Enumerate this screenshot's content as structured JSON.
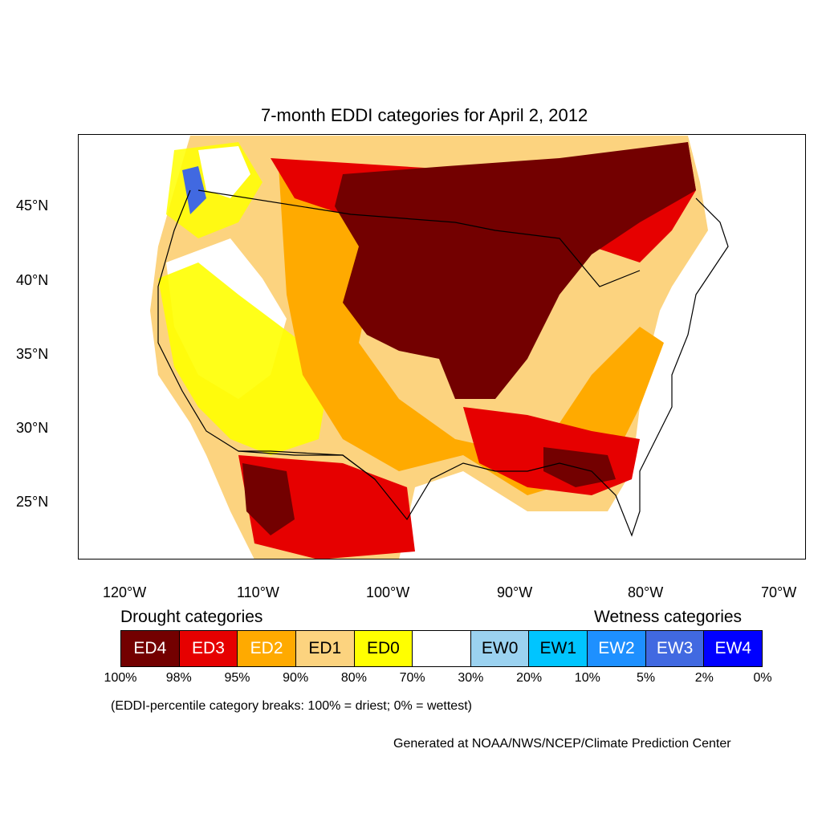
{
  "title": "7-month EDDI categories for April 2, 2012",
  "colors": {
    "ED4": "#730000",
    "ED3": "#e60000",
    "ED2": "#ffaa00",
    "ED1": "#fcd37f",
    "ED0": "#ffff00",
    "neutral": "#ffffff",
    "EW0": "#9bd2f0",
    "EW1": "#00c5ff",
    "EW2": "#1e90ff",
    "EW3": "#4169e1",
    "EW4": "#0000ff"
  },
  "lat_labels": [
    "45°N",
    "40°N",
    "35°N",
    "30°N",
    "25°N"
  ],
  "lon_labels": [
    "120°W",
    "110°W",
    "100°W",
    "90°W",
    "80°W",
    "70°W"
  ],
  "legend": {
    "drought_heading": "Drought categories",
    "wetness_heading": "Wetness categories",
    "categories": [
      {
        "label": "ED4",
        "color": "#730000",
        "text_color": "#ffffff"
      },
      {
        "label": "ED3",
        "color": "#e60000",
        "text_color": "#ffffff"
      },
      {
        "label": "ED2",
        "color": "#ffaa00",
        "text_color": "#ffffff"
      },
      {
        "label": "ED1",
        "color": "#fcd37f",
        "text_color": "#000000"
      },
      {
        "label": "ED0",
        "color": "#ffff00",
        "text_color": "#000000"
      },
      {
        "label": "",
        "color": "#ffffff",
        "text_color": "#000000"
      },
      {
        "label": "EW0",
        "color": "#9bd2f0",
        "text_color": "#000000"
      },
      {
        "label": "EW1",
        "color": "#00c5ff",
        "text_color": "#000000"
      },
      {
        "label": "EW2",
        "color": "#1e90ff",
        "text_color": "#ffffff"
      },
      {
        "label": "EW3",
        "color": "#4169e1",
        "text_color": "#ffffff"
      },
      {
        "label": "EW4",
        "color": "#0000ff",
        "text_color": "#ffffff"
      }
    ],
    "breaks": [
      "100%",
      "98%",
      "95%",
      "90%",
      "80%",
      "70%",
      "30%",
      "20%",
      "10%",
      "5%",
      "2%",
      "0%"
    ]
  },
  "note": "(EDDI-percentile category breaks: 100% = driest; 0% = wettest)",
  "credit": "Generated at NOAA/NWS/NCEP/Climate Prediction Center"
}
